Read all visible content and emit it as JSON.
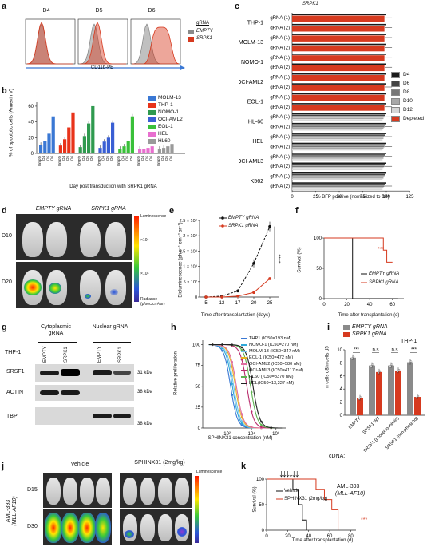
{
  "panel_letters": {
    "a": "a",
    "b": "b",
    "c": "c",
    "d": "d",
    "e": "e",
    "f": "f",
    "g": "g",
    "h": "h",
    "i": "i",
    "j": "j",
    "k": "k"
  },
  "colors": {
    "srpk1_red": "#d63a1f",
    "empty_gray": "#8a8a8a",
    "d4": "#1a1a1a",
    "d6": "#444444",
    "d8": "#777777",
    "d10": "#a8a8a8",
    "d12": "#d6d6d6",
    "depleted": "#d63a1f"
  },
  "panel_a": {
    "titles": [
      "D4",
      "D5",
      "D6"
    ],
    "xlabel": "CD11b-PE",
    "legend_title": "gRNA",
    "legend": [
      "EMPTY",
      "SRPK1"
    ]
  },
  "panel_b": {
    "ylabel": "% of apoptotic cells (Annexin V)",
    "xlabel": "Day post transduction with SRPK1 gRNA",
    "yticks": [
      "0",
      "20",
      "40",
      "60"
    ],
    "xtick_labels": [
      "Empty",
      "D4",
      "D5",
      "D6"
    ],
    "legend": [
      "MOLM-13",
      "THP-1",
      "NOMO-1",
      "OCI-AML2",
      "EOL-1",
      "HEL",
      "HL60"
    ]
  },
  "panel_c": {
    "header": "SRPK1",
    "rows": [
      {
        "cell": "THP-1",
        "grnas": [
          "gRNA (1)",
          "gRNA (2)"
        ]
      },
      {
        "cell": "MOLM-13",
        "grnas": [
          "gRNA (1)",
          "gRNA (2)"
        ]
      },
      {
        "cell": "NOMO-1",
        "grnas": [
          "gRNA (1)",
          "gRNA (2)"
        ]
      },
      {
        "cell": "OCI-AML2",
        "grnas": [
          "gRNA (1)",
          "gRNA (2)"
        ]
      },
      {
        "cell": "EOL-1",
        "grnas": [
          "gRNA (1)",
          "gRNA (2)"
        ]
      },
      {
        "cell": "HL-60",
        "grnas": [
          "gRNA (1)",
          "gRNA (2)"
        ]
      },
      {
        "cell": "HEL",
        "grnas": [
          "gRNA (1)",
          "gRNA (2)"
        ]
      },
      {
        "cell": "OCI-AML3",
        "grnas": [
          "gRNA (1)",
          "gRNA (2)"
        ]
      },
      {
        "cell": "K562",
        "grnas": [
          "gRNA (1)",
          "gRNA (2)"
        ]
      }
    ],
    "xticks": [
      "0",
      "25",
      "50",
      "75",
      "100",
      "125"
    ],
    "xlabel": "% BFP positive (normalized to D4)",
    "legend": [
      "D4",
      "D6",
      "D8",
      "D10",
      "D12",
      "Depleted"
    ]
  },
  "panel_d": {
    "headers": [
      "EMPTY gRNA",
      "SRPK1 gRNA"
    ],
    "rows": [
      "D10",
      "D20"
    ],
    "scale_title": "Luminescence",
    "scale_ticks": [
      "×10⁷",
      "×10⁶"
    ],
    "scale_unit": "Radiance (p/sec/cm²/sr)"
  },
  "panel_e": {
    "ylabel": "Bioluminescence (ph s⁻¹ cm⁻² sr⁻¹)",
    "xlabel": "Time after transplantation (days)",
    "yticks": [
      "0",
      "5 × 10⁷",
      "1 × 10⁸",
      "1.5 × 10⁸",
      "2 × 10⁸",
      "2.5 × 10⁸"
    ],
    "xticks": [
      "5",
      "12",
      "17",
      "20",
      "25"
    ],
    "legend": [
      "EMPTY gRNA",
      "SRPK1 gRNA"
    ],
    "sig": "****"
  },
  "panel_f": {
    "ylabel": "Survival (%)",
    "xlabel": "Time after transplantation (d)",
    "yticks": [
      "0",
      "50",
      "100"
    ],
    "xticks": [
      "0",
      "20",
      "40",
      "60"
    ],
    "legend": [
      "EMPTY gRNA",
      "SRPK1 gRNA"
    ],
    "sig": "***"
  },
  "panel_g": {
    "group_labels": [
      "Cytoplasmic gRNA",
      "Nuclear gRNA"
    ],
    "cell": "THP-1",
    "lanes": [
      "EMPTY",
      "SRPK1",
      "EMPTY",
      "SRPK1"
    ],
    "proteins": [
      "SRSF1",
      "ACTIN",
      "TBP"
    ],
    "markers": [
      "31 kDa",
      "38 kDa",
      "38 kDa"
    ]
  },
  "panel_h": {
    "ylabel": "Relative proliferation",
    "xlabel": "SPHINX31 concentration (nM)",
    "yticks": [
      "0",
      "25",
      "50",
      "75",
      "100"
    ],
    "xticks": [
      "10²",
      "10⁴",
      "10⁶"
    ],
    "legend": [
      {
        "label": "THP1 (IC50=193 nM)",
        "color": "#3a78d4"
      },
      {
        "label": "NOMO-1 (IC50=270 nM)",
        "color": "#2fa8d8"
      },
      {
        "label": "MOLM-13 (IC50=347 nM)",
        "color": "#6fc0e8"
      },
      {
        "label": "EOL-1 (IC50=472 nM)",
        "color": "#e8b020"
      },
      {
        "label": "OCI-AML2 (IC50=580 nM)",
        "color": "#e06fa0"
      },
      {
        "label": "OCI-AML3 (IC50=4117 nM)",
        "color": "#b92d6d"
      },
      {
        "label": "HL60 (IC50=8370 nM)",
        "color": "#5db350"
      },
      {
        "label": "HEL(IC50=13,227 nM)",
        "color": "#222222"
      }
    ]
  },
  "panel_i": {
    "legend": [
      "EMPTY gRNA",
      "SRPK1 gRNA"
    ],
    "cell": "THP-1",
    "ylabel": "n cells d8/n cells d5",
    "yticks": [
      "0",
      "2",
      "4",
      "6",
      "8",
      "10"
    ],
    "categories": [
      "EMPTY",
      "SRSF1 WT",
      "SRSF1 (phospho-mimic)",
      "SRSF1 (non-phospho)"
    ],
    "xprefix": "cDNA:",
    "sigs": [
      "***",
      "n.s",
      "n.s",
      "***"
    ]
  },
  "panel_j": {
    "headers": [
      "Vehicle",
      "SPHINX31 (2mg/kg)"
    ],
    "rows": [
      "D15",
      "D30"
    ],
    "side_label_1": "AML-393",
    "side_label_2": "(MLL-AF10)",
    "scale_title": "Luminescence"
  },
  "panel_k": {
    "ylabel": "Survival (%)",
    "xlabel": "Time after transplantation (d)",
    "yticks": [
      "0",
      "50",
      "100"
    ],
    "xticks": [
      "0",
      "20",
      "40",
      "60",
      "80"
    ],
    "title_1": "AML-393",
    "title_2": "(MLL-AF10)",
    "legend": [
      "Vehicle",
      "SPHINX31 (2mg/kg)"
    ],
    "sig": "***"
  },
  "chart_data": [
    {
      "type": "bar",
      "panel": "b",
      "categories": [
        "Empty",
        "D4",
        "D5",
        "D6"
      ],
      "series": [
        {
          "name": "MOLM-13",
          "values": [
            11,
            16,
            25,
            47
          ]
        },
        {
          "name": "THP-1",
          "values": [
            10,
            18,
            33,
            52
          ]
        },
        {
          "name": "NOMO-1",
          "values": [
            8,
            22,
            38,
            60
          ]
        },
        {
          "name": "OCI-AML2",
          "values": [
            7,
            15,
            20,
            39
          ]
        },
        {
          "name": "EOL-1",
          "values": [
            6,
            9,
            16,
            47
          ]
        },
        {
          "name": "HEL",
          "values": [
            6,
            6,
            7,
            9
          ]
        },
        {
          "name": "HL60",
          "values": [
            6,
            7,
            9,
            12
          ]
        }
      ],
      "ylim": [
        0,
        65
      ]
    },
    {
      "type": "line",
      "panel": "e",
      "x": [
        5,
        12,
        17,
        20,
        25
      ],
      "series": [
        {
          "name": "EMPTY gRNA",
          "values": [
            0,
            3000000.0,
            20000000.0,
            110000000.0,
            230000000.0
          ]
        },
        {
          "name": "SRPK1 gRNA",
          "values": [
            0,
            0,
            3000000.0,
            15000000.0,
            60000000.0
          ]
        }
      ]
    },
    {
      "type": "line",
      "panel": "f",
      "series": [
        {
          "name": "EMPTY gRNA",
          "x": [
            0,
            25,
            25,
            65
          ],
          "values": [
            100,
            100,
            0,
            0
          ]
        },
        {
          "name": "SRPK1 gRNA",
          "x": [
            0,
            52,
            52,
            55,
            55,
            60
          ],
          "values": [
            100,
            100,
            80,
            80,
            60,
            60
          ]
        }
      ]
    },
    {
      "type": "bar",
      "panel": "i",
      "categories": [
        "EMPTY",
        "SRSF1 WT",
        "SRSF1 (phospho-mimic)",
        "SRSF1 (non-phospho)"
      ],
      "series": [
        {
          "name": "EMPTY gRNA",
          "values": [
            8.8,
            7.6,
            7.6,
            8.1
          ]
        },
        {
          "name": "SRPK1 gRNA",
          "values": [
            2.6,
            6.6,
            6.8,
            2.8
          ]
        }
      ],
      "ylim": [
        0,
        10
      ]
    },
    {
      "type": "line",
      "panel": "k",
      "series": [
        {
          "name": "Vehicle",
          "x": [
            0,
            25,
            25,
            30,
            30,
            34,
            34,
            38,
            38
          ],
          "values": [
            100,
            100,
            80,
            80,
            50,
            50,
            20,
            20,
            0
          ]
        },
        {
          "name": "SPHINX31 (2mg/kg)",
          "x": [
            0,
            47,
            47,
            55,
            55,
            62,
            62,
            68,
            68
          ],
          "values": [
            100,
            100,
            80,
            80,
            60,
            60,
            40,
            40,
            0
          ]
        }
      ]
    }
  ]
}
